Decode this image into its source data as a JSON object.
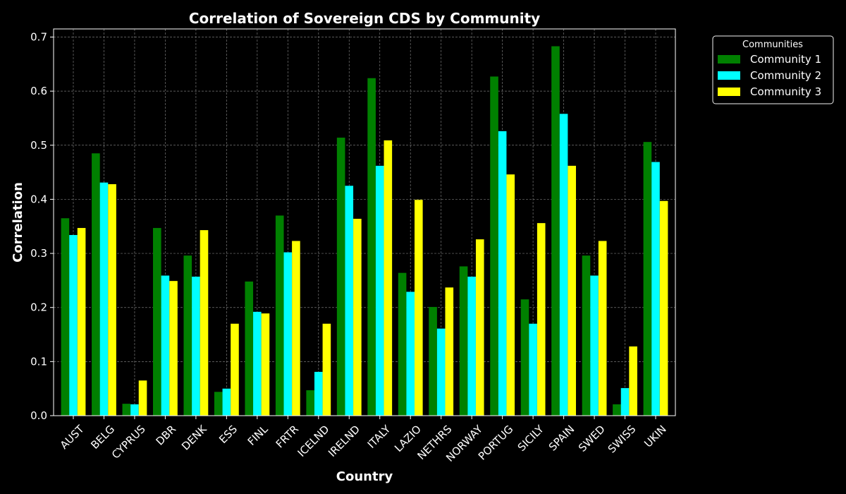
{
  "chart_data": {
    "type": "bar",
    "title": "Correlation of Sovereign CDS by Community",
    "xlabel": "Country",
    "ylabel": "Correlation",
    "ylim": [
      0,
      0.715
    ],
    "yticks": [
      "0.0",
      "0.1",
      "0.2",
      "0.3",
      "0.4",
      "0.5",
      "0.6",
      "0.7"
    ],
    "ytick_values": [
      0,
      0.1,
      0.2,
      0.3,
      0.4,
      0.5,
      0.6,
      0.7
    ],
    "grid": true,
    "legend": {
      "title": "Communities",
      "placement": "outside-top-right"
    },
    "categories": [
      "AUST",
      "BELG",
      "CYPRUS",
      "DBR",
      "DENK",
      "ESS",
      "FINL",
      "FRTR",
      "ICELND",
      "IRELND",
      "ITALY",
      "LAZIO",
      "NETHRS",
      "NORWAY",
      "PORTUG",
      "SICILY",
      "SPAIN",
      "SWED",
      "SWISS",
      "UKIN"
    ],
    "series": [
      {
        "name": "Community 1",
        "color": "#008000",
        "values": [
          0.365,
          0.485,
          0.022,
          0.347,
          0.296,
          0.044,
          0.248,
          0.37,
          0.047,
          0.514,
          0.624,
          0.264,
          0.201,
          0.276,
          0.627,
          0.215,
          0.683,
          0.296,
          0.021,
          0.506
        ]
      },
      {
        "name": "Community 2",
        "color": "#00ffff",
        "values": [
          0.334,
          0.431,
          0.021,
          0.259,
          0.257,
          0.05,
          0.192,
          0.302,
          0.081,
          0.425,
          0.462,
          0.229,
          0.161,
          0.257,
          0.526,
          0.17,
          0.558,
          0.259,
          0.051,
          0.469
        ]
      },
      {
        "name": "Community 3",
        "color": "#ffff00",
        "values": [
          0.347,
          0.428,
          0.065,
          0.249,
          0.343,
          0.17,
          0.189,
          0.323,
          0.17,
          0.364,
          0.509,
          0.399,
          0.237,
          0.326,
          0.446,
          0.356,
          0.462,
          0.323,
          0.128,
          0.397
        ]
      }
    ]
  }
}
